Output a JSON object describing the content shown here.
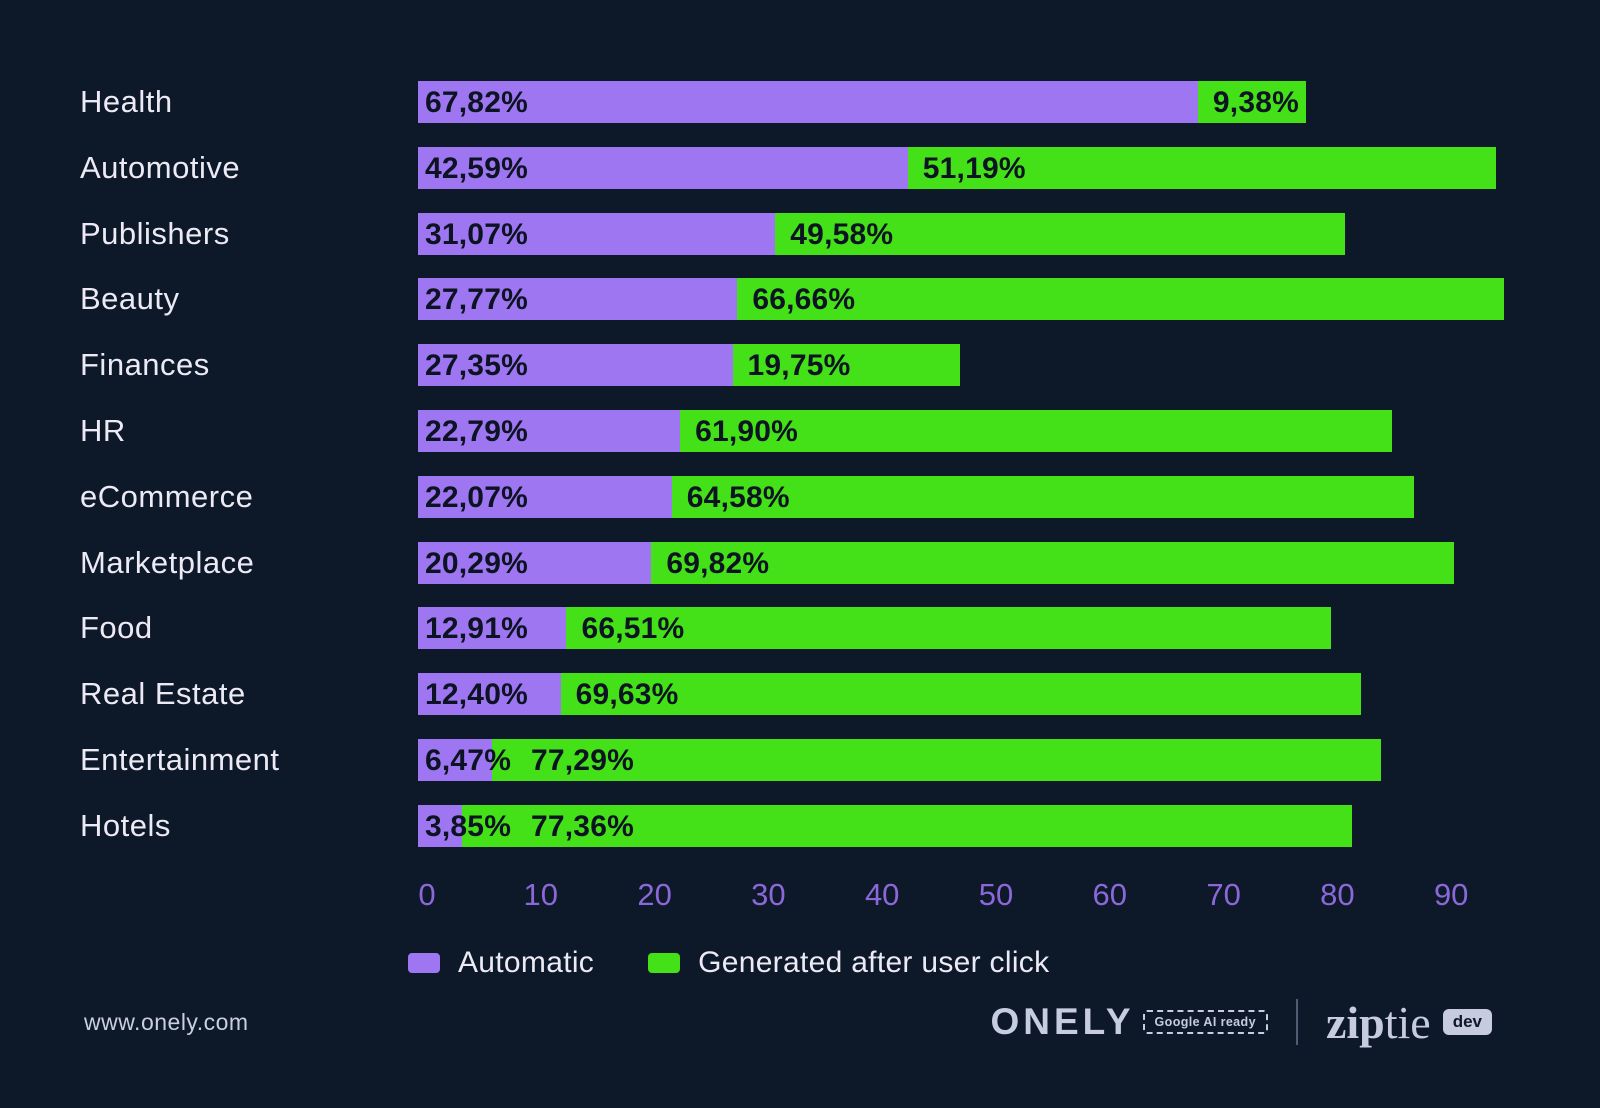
{
  "chart_data": {
    "type": "bar",
    "orientation": "horizontal",
    "stacked": true,
    "categories": [
      "Health",
      "Automotive",
      "Publishers",
      "Beauty",
      "Finances",
      "HR",
      "eCommerce",
      "Marketplace",
      "Food",
      "Real Estate",
      "Entertainment",
      "Hotels"
    ],
    "series": [
      {
        "name": "Automatic",
        "color": "#9f76f1",
        "values": [
          67.82,
          42.59,
          31.07,
          27.77,
          27.35,
          22.79,
          22.07,
          20.29,
          12.91,
          12.4,
          6.47,
          3.85
        ],
        "labels": [
          "67,82%",
          "42,59%",
          "31,07%",
          "27,77%",
          "27,35%",
          "22,79%",
          "22,07%",
          "20,29%",
          "12,91%",
          "12,40%",
          "6,47%",
          "3,85%"
        ]
      },
      {
        "name": "Generated after user click",
        "color": "#44e018",
        "values": [
          9.38,
          51.19,
          49.58,
          66.66,
          19.75,
          61.9,
          64.58,
          69.82,
          66.51,
          69.63,
          77.29,
          77.36
        ],
        "labels": [
          "9,38%",
          "51,19%",
          "49,58%",
          "66,66%",
          "19,75%",
          "61,90%",
          "64,58%",
          "69,82%",
          "66,51%",
          "69,63%",
          "77,29%",
          "77,36%"
        ]
      }
    ],
    "x_ticks": [
      "0",
      "10",
      "20",
      "30",
      "40",
      "50",
      "60",
      "70",
      "80",
      "90"
    ],
    "xlim": [
      0,
      100
    ],
    "grid": false,
    "legend_position": "bottom",
    "title": ""
  },
  "legend": {
    "items": [
      {
        "label": "Automatic",
        "color": "#9f76f1"
      },
      {
        "label": "Generated after user click",
        "color": "#44e018"
      }
    ]
  },
  "footer": {
    "website": "www.onely.com",
    "onely_logo": "ONELY",
    "onely_badge": "Google AI ready",
    "separator": "|",
    "ziptie": {
      "zip": "zip",
      "tie": "tie",
      "badge": "dev"
    }
  },
  "colors": {
    "background": "#0d1829",
    "automatic": "#9f76f1",
    "generated": "#44e018",
    "on_bar_text": "#0c1322",
    "axis_text": "#8a68d8",
    "category_text": "#eceaf4",
    "footer_text": "#c9cfe0"
  }
}
